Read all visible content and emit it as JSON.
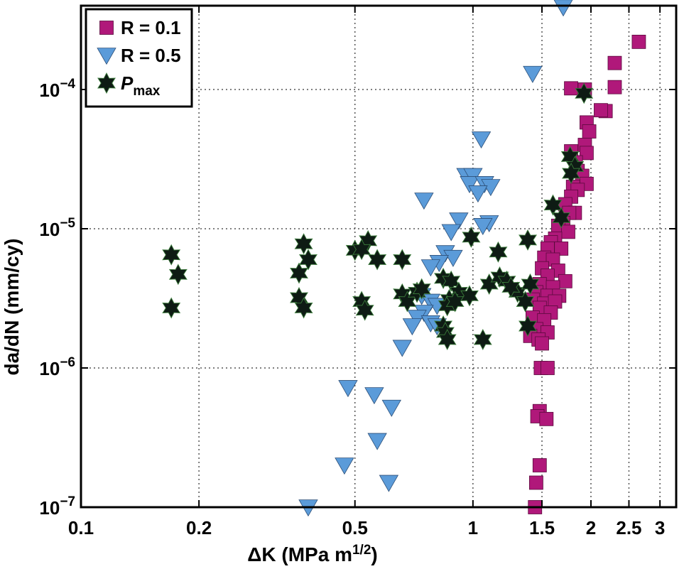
{
  "chart_data": {
    "type": "scatter",
    "xscale": "log",
    "yscale": "log",
    "xlim": [
      0.1,
      3
    ],
    "ylim": [
      1e-07,
      0.0004
    ],
    "grid": true,
    "xlabel": {
      "prefix": "ΔK (MPa m",
      "sup": "1/2",
      "suffix": ")"
    },
    "ylabel": "da/dN (mm/cy)",
    "xticks": [
      {
        "value": 0.1,
        "label": "0.1"
      },
      {
        "value": 0.2,
        "label": "0.2"
      },
      {
        "value": 0.5,
        "label": "0.5"
      },
      {
        "value": 1,
        "label": "1"
      },
      {
        "value": 1.5,
        "label": "1.5"
      },
      {
        "value": 2,
        "label": "2"
      },
      {
        "value": 2.5,
        "label": "2.5"
      },
      {
        "value": 3,
        "label": "3"
      }
    ],
    "yticks": [
      {
        "value": 1e-07,
        "base": "10",
        "exp": "−7"
      },
      {
        "value": 1e-06,
        "base": "10",
        "exp": "−6"
      },
      {
        "value": 1e-05,
        "base": "10",
        "exp": "−5"
      },
      {
        "value": 0.0001,
        "base": "10",
        "exp": "−4"
      }
    ],
    "legend": {
      "position": "top-left"
    },
    "series": [
      {
        "name": "R = 0.1",
        "marker": "square",
        "color": "#b0187a",
        "points": [
          [
            2.65,
            0.00022
          ],
          [
            2.3,
            0.000155
          ],
          [
            2.3,
            0.000104
          ],
          [
            2.18,
            7e-05
          ],
          [
            2.12,
            7.1e-05
          ],
          [
            1.78,
            0.000102
          ],
          [
            1.93,
            0.0001
          ],
          [
            1.95,
            5.8e-05
          ],
          [
            1.98,
            5e-05
          ],
          [
            1.93,
            4e-05
          ],
          [
            1.95,
            3.5e-05
          ],
          [
            1.78,
            3.6e-05
          ],
          [
            1.83,
            3e-05
          ],
          [
            1.85,
            2.6e-05
          ],
          [
            1.9,
            2.4e-05
          ],
          [
            1.95,
            2.1e-05
          ],
          [
            1.8,
            2e-05
          ],
          [
            1.85,
            1.9e-05
          ],
          [
            1.78,
            1.7e-05
          ],
          [
            1.72,
            1.5e-05
          ],
          [
            1.82,
            1.3e-05
          ],
          [
            1.76,
            1.3e-05
          ],
          [
            1.7,
            1.1e-05
          ],
          [
            1.65,
            1.05e-05
          ],
          [
            1.75,
            9.5e-06
          ],
          [
            1.62,
            8.5e-06
          ],
          [
            1.58,
            8e-06
          ],
          [
            1.55,
            7.2e-06
          ],
          [
            1.68,
            7.2e-06
          ],
          [
            1.52,
            6.2e-06
          ],
          [
            1.6,
            6e-06
          ],
          [
            1.5,
            5.2e-06
          ],
          [
            1.65,
            5e-06
          ],
          [
            1.55,
            4.6e-06
          ],
          [
            1.72,
            4.2e-06
          ],
          [
            1.48,
            4e-06
          ],
          [
            1.6,
            3.8e-06
          ],
          [
            1.45,
            3.5e-06
          ],
          [
            1.55,
            3.3e-06
          ],
          [
            1.66,
            3.3e-06
          ],
          [
            1.42,
            3.1e-06
          ],
          [
            1.52,
            2.9e-06
          ],
          [
            1.62,
            3e-06
          ],
          [
            1.48,
            2.7e-06
          ],
          [
            1.58,
            2.5e-06
          ],
          [
            1.42,
            2.3e-06
          ],
          [
            1.52,
            2.2e-06
          ],
          [
            1.45,
            1.9e-06
          ],
          [
            1.55,
            1.8e-06
          ],
          [
            1.4,
            1.7e-06
          ],
          [
            1.47,
            1.6e-06
          ],
          [
            1.5,
            1.5e-06
          ],
          [
            1.49,
            1e-06
          ],
          [
            1.55,
            1e-06
          ],
          [
            1.48,
            4.9e-07
          ],
          [
            1.46,
            4.5e-07
          ],
          [
            1.54,
            4.3e-07
          ],
          [
            1.48,
            2e-07
          ],
          [
            1.45,
            1.5e-07
          ],
          [
            1.44,
            1e-07
          ]
        ]
      },
      {
        "name": "R = 0.5",
        "marker": "triangle-down",
        "color": "#5b9bd9",
        "points": [
          [
            1.7,
            0.00039
          ],
          [
            1.42,
            0.00013
          ],
          [
            1.05,
            4.4e-05
          ],
          [
            0.96,
            2.4e-05
          ],
          [
            1.0,
            2.4e-05
          ],
          [
            0.98,
            2.1e-05
          ],
          [
            1.07,
            2.1e-05
          ],
          [
            1.11,
            2e-05
          ],
          [
            1.03,
            1.8e-05
          ],
          [
            0.75,
            1.6e-05
          ],
          [
            1.1,
            1.1e-05
          ],
          [
            0.92,
            1.15e-05
          ],
          [
            1.06,
            1.05e-05
          ],
          [
            0.88,
            9.5e-06
          ],
          [
            0.85,
            6.7e-06
          ],
          [
            0.89,
            6.2e-06
          ],
          [
            0.82,
            5.7e-06
          ],
          [
            0.78,
            5.3e-06
          ],
          [
            0.74,
            3.3e-06
          ],
          [
            0.78,
            3e-06
          ],
          [
            0.81,
            2.8e-06
          ],
          [
            0.75,
            2.5e-06
          ],
          [
            0.72,
            2.3e-06
          ],
          [
            0.78,
            2.1e-06
          ],
          [
            0.81,
            2e-06
          ],
          [
            0.7,
            2e-06
          ],
          [
            0.66,
            1.4e-06
          ],
          [
            0.48,
            7.2e-07
          ],
          [
            0.56,
            6.4e-07
          ],
          [
            0.62,
            5.2e-07
          ],
          [
            0.57,
            3e-07
          ],
          [
            0.47,
            2e-07
          ],
          [
            0.61,
            1.5e-07
          ],
          [
            0.38,
            1e-07
          ]
        ]
      },
      {
        "name": "P",
        "name_sub": "max",
        "marker": "star",
        "color": "#0e1b14",
        "points": [
          [
            0.17,
            6.5e-06
          ],
          [
            0.177,
            4.7e-06
          ],
          [
            0.17,
            2.7e-06
          ],
          [
            0.37,
            7.8e-06
          ],
          [
            0.36,
            4.8e-06
          ],
          [
            0.38,
            6e-06
          ],
          [
            0.36,
            3.2e-06
          ],
          [
            0.37,
            2.7e-06
          ],
          [
            0.5,
            7e-06
          ],
          [
            0.54,
            8.2e-06
          ],
          [
            0.52,
            7.1e-06
          ],
          [
            0.57,
            6e-06
          ],
          [
            0.52,
            3e-06
          ],
          [
            0.53,
            2.6e-06
          ],
          [
            0.66,
            6e-06
          ],
          [
            0.66,
            3.4e-06
          ],
          [
            0.68,
            3e-06
          ],
          [
            0.72,
            3.5e-06
          ],
          [
            0.74,
            3.7e-06
          ],
          [
            0.84,
            4.4e-06
          ],
          [
            0.88,
            4.2e-06
          ],
          [
            0.92,
            3.5e-06
          ],
          [
            0.87,
            3.1e-06
          ],
          [
            0.86,
            2.8e-06
          ],
          [
            0.9,
            3e-06
          ],
          [
            0.84,
            2e-06
          ],
          [
            0.85,
            1.8e-06
          ],
          [
            0.86,
            1.6e-06
          ],
          [
            0.98,
            3.3e-06
          ],
          [
            0.99,
            8.7e-06
          ],
          [
            1.16,
            6.8e-06
          ],
          [
            1.06,
            1.6e-06
          ],
          [
            1.1,
            4e-06
          ],
          [
            1.17,
            4.5e-06
          ],
          [
            1.22,
            4.2e-06
          ],
          [
            1.3,
            3.5e-06
          ],
          [
            1.25,
            3.8e-06
          ],
          [
            1.38,
            8.3e-06
          ],
          [
            1.4,
            4e-06
          ],
          [
            1.36,
            3e-06
          ],
          [
            1.38,
            2e-06
          ],
          [
            1.6,
            1.48e-05
          ],
          [
            1.68,
            1.2e-05
          ],
          [
            1.77,
            3.3e-05
          ],
          [
            1.82,
            2.8e-05
          ],
          [
            1.78,
            2.5e-05
          ],
          [
            1.92,
            9.4e-05
          ]
        ]
      }
    ]
  }
}
